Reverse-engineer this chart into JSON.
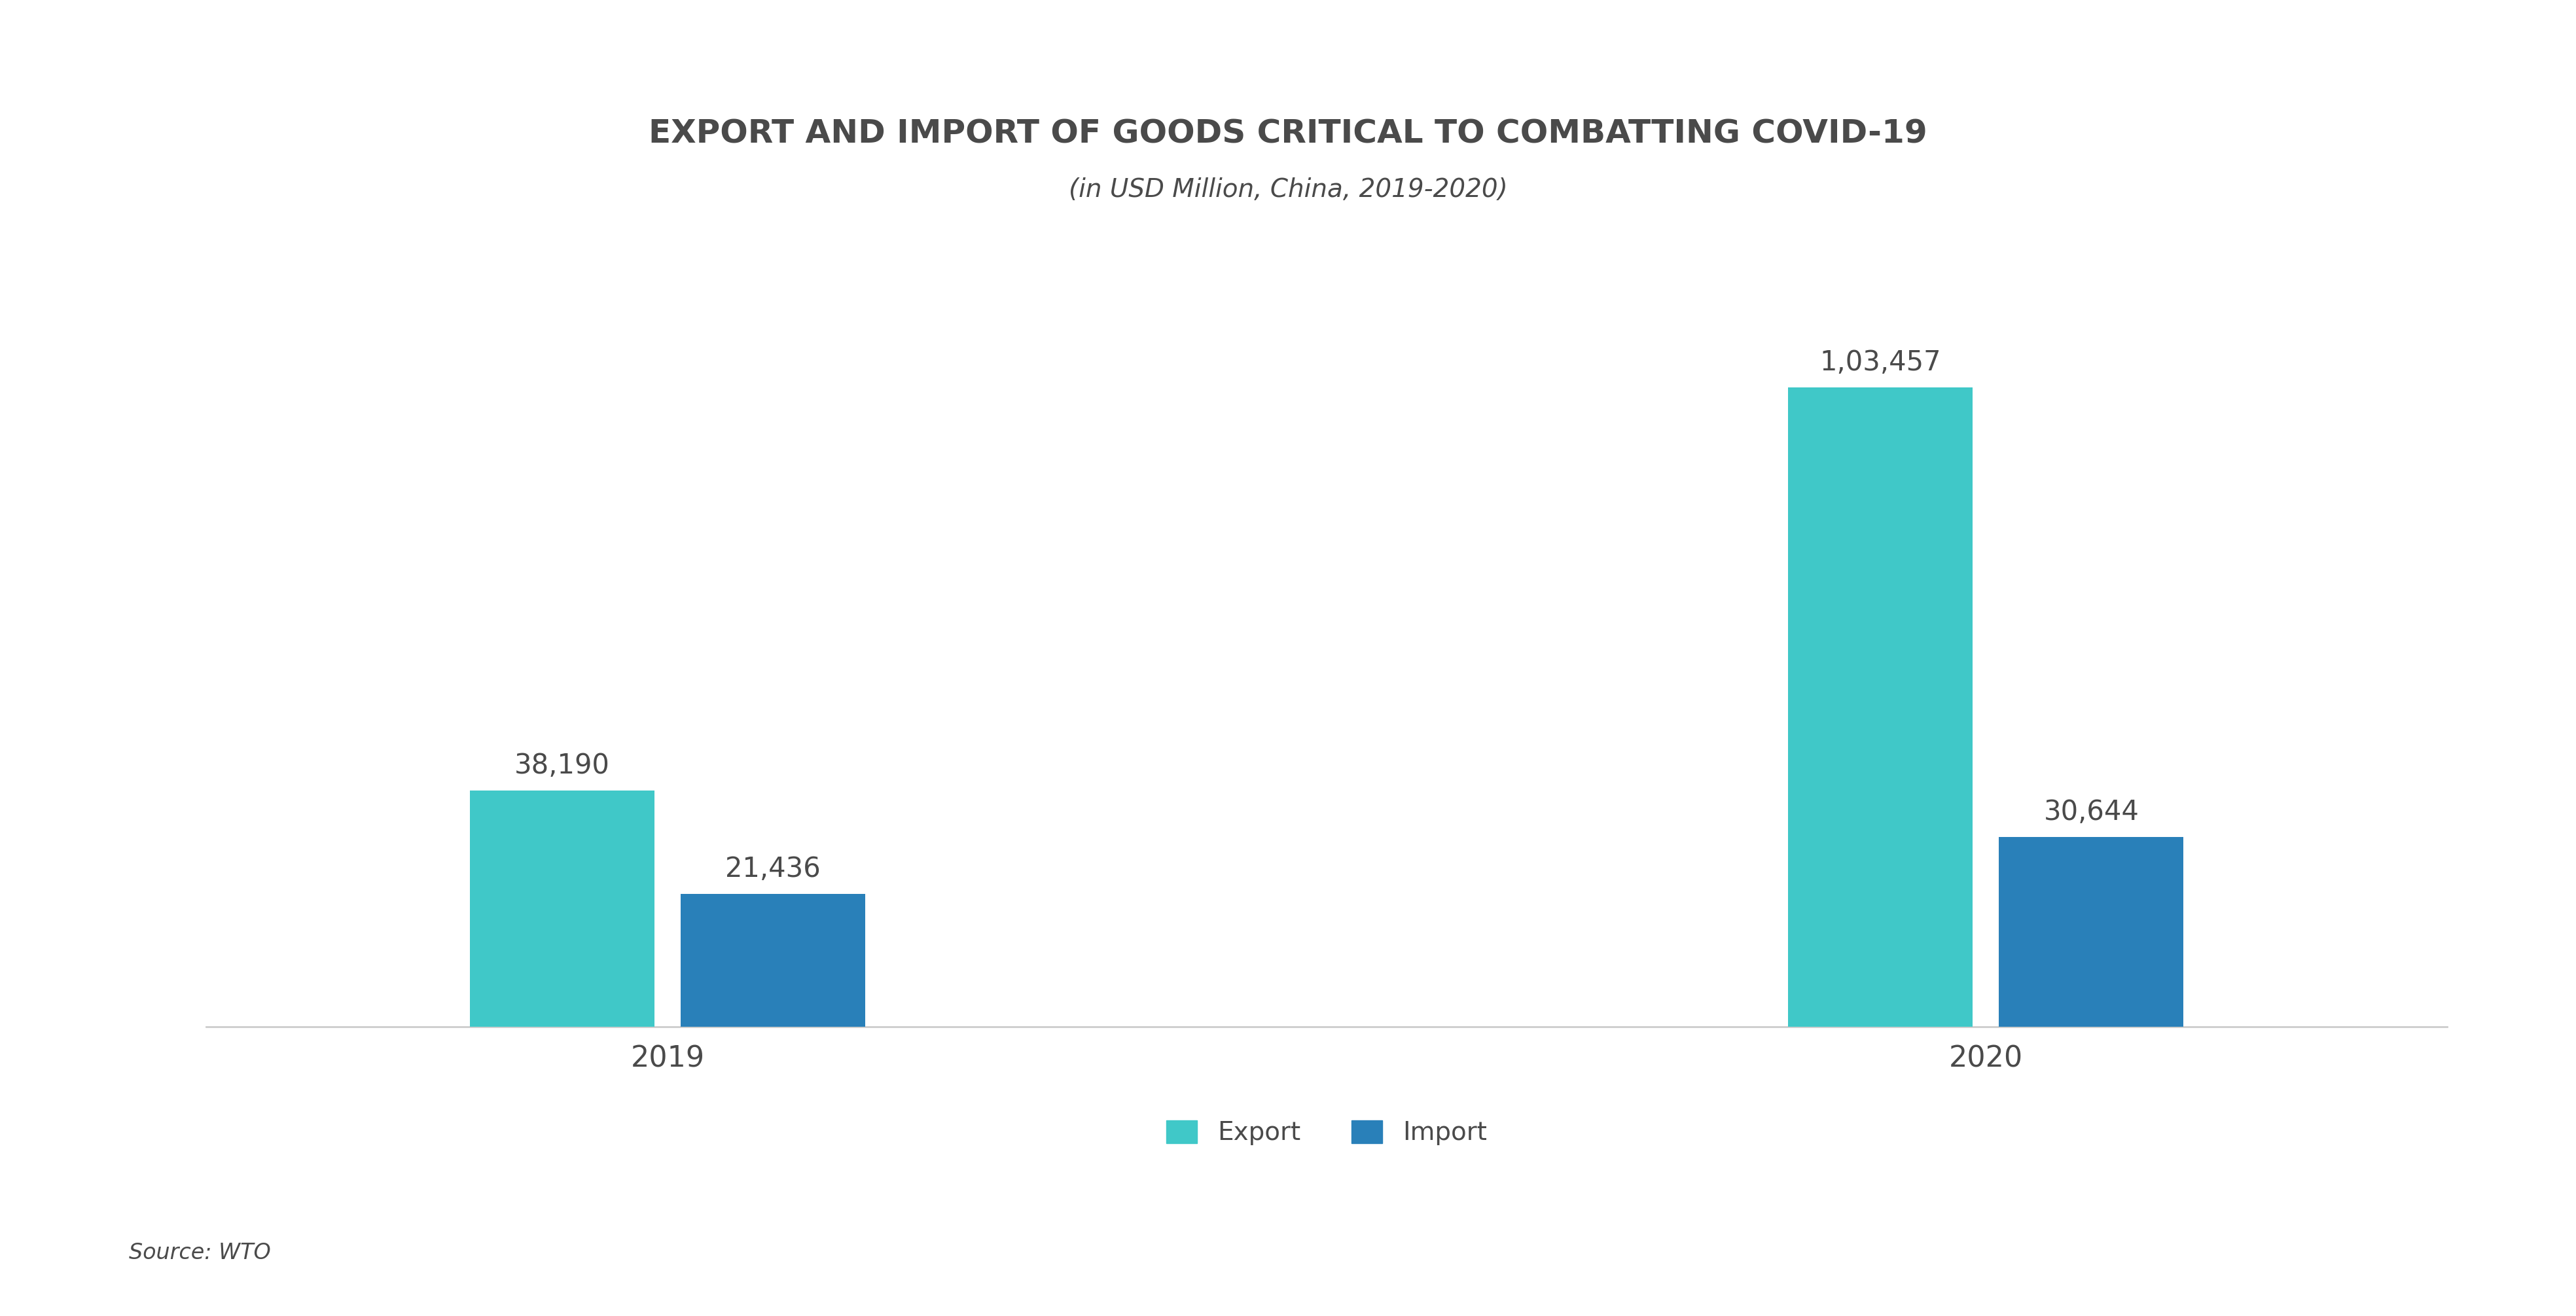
{
  "title_line1": "EXPORT AND IMPORT OF GOODS CRITICAL TO COMBATTING COVID-19",
  "title_line2": "(in USD Million, China, 2019-2020)",
  "categories": [
    "2019",
    "2020"
  ],
  "export_values": [
    38190,
    103457
  ],
  "import_values": [
    21436,
    30644
  ],
  "export_labels": [
    "38,190",
    "1,03,457"
  ],
  "import_labels": [
    "21,436",
    "30,644"
  ],
  "export_color": "#40C8C8",
  "import_color": "#2980B9",
  "background_color": "#ffffff",
  "text_color": "#4a4a4a",
  "title_color": "#4a4a4a",
  "legend_export": "Export",
  "legend_import": "Import",
  "source_text": "Source: WTO",
  "ylim": [
    0,
    130000
  ]
}
